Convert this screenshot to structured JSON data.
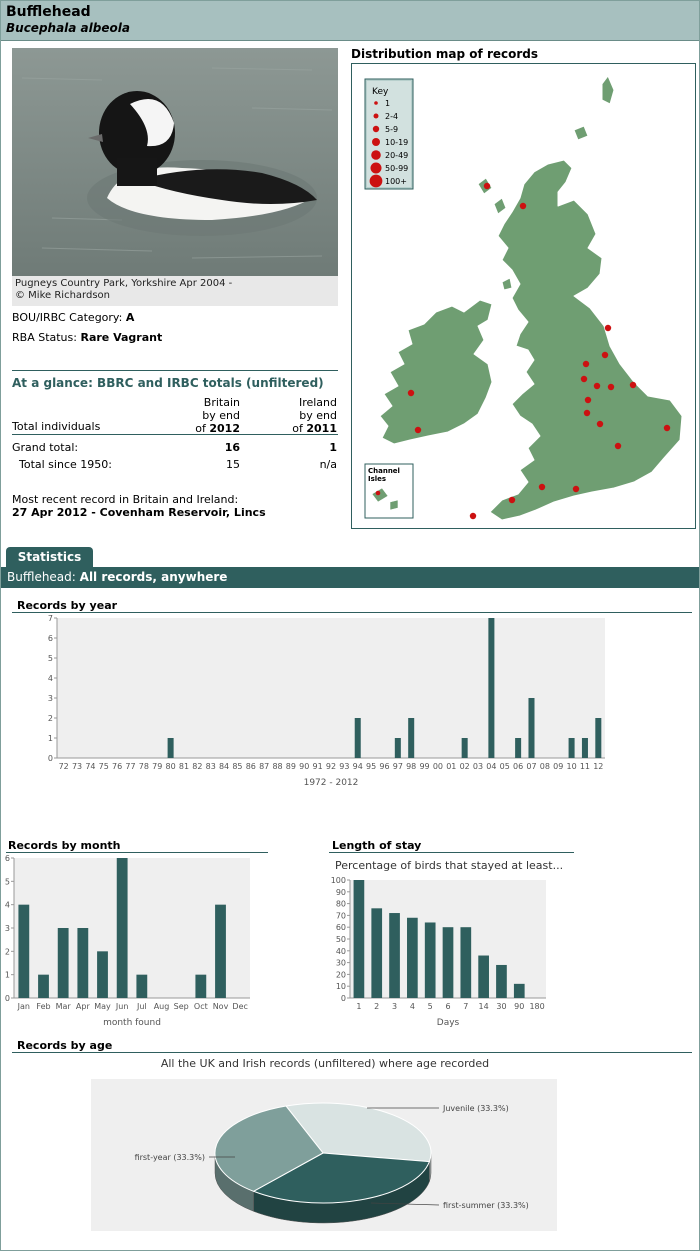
{
  "header": {
    "title": "Bufflehead",
    "subtitle": "Bucephala albeola"
  },
  "photo": {
    "caption_line1": "Pugneys Country Park, Yorkshire Apr 2004 -",
    "caption_line2": "© Mike Richardson"
  },
  "status": {
    "bou_label": "BOU/IRBC Category:",
    "bou_value": "A",
    "rba_label": "RBA Status:",
    "rba_value": "Rare Vagrant"
  },
  "glance": {
    "title": "At a glance: BBRC and IRBC totals (unfiltered)",
    "col1_l1": "Britain",
    "col1_l2": "by end",
    "col1_l3a": "of ",
    "col1_l3b": "2012",
    "col2_l1": "Ireland",
    "col2_l2": "by end",
    "col2_l3a": "of ",
    "col2_l3b": "2011",
    "row0_label": "Total individuals",
    "row1_label": "Grand total:",
    "row1_b": "16",
    "row1_i": "1",
    "row2_label": "Total since 1950:",
    "row2_b": "15",
    "row2_i": "n/a",
    "recent_label": "Most recent record in Britain and Ireland:",
    "recent_value": "27 Apr 2012  - Covenham Reservoir, Lincs"
  },
  "map": {
    "title": "Distribution map of records",
    "key_title": "Key",
    "key_items": [
      "1",
      "2-4",
      "5-9",
      "10-19",
      "20-49",
      "50-99",
      "100+"
    ],
    "inset_label_1": "Channel",
    "inset_label_2": "Isles",
    "land_color": "#6f9e72",
    "dot_color": "#cc1111"
  },
  "stats": {
    "tab": "Statistics",
    "bar_label": "Bufflehead:",
    "bar_value": "All records, anywhere"
  },
  "sections": {
    "by_year": "Records by year",
    "by_month": "Records by month",
    "stay": "Length of stay",
    "by_age": "Records by age"
  },
  "chart_data": [
    {
      "type": "bar",
      "title": "Records by year",
      "xlabel": "1972 - 2012",
      "ylim": [
        0,
        7
      ],
      "yticks": [
        "0",
        "1",
        "2",
        "3",
        "4",
        "5",
        "6",
        "7"
      ],
      "categories": [
        "72",
        "73",
        "74",
        "75",
        "76",
        "77",
        "78",
        "79",
        "80",
        "81",
        "82",
        "83",
        "84",
        "85",
        "86",
        "87",
        "88",
        "89",
        "90",
        "91",
        "92",
        "93",
        "94",
        "95",
        "96",
        "97",
        "98",
        "99",
        "00",
        "01",
        "02",
        "03",
        "04",
        "05",
        "06",
        "07",
        "08",
        "09",
        "10",
        "11",
        "12"
      ],
      "values": [
        0,
        0,
        0,
        0,
        0,
        0,
        0,
        0,
        1,
        0,
        0,
        0,
        0,
        0,
        0,
        0,
        0,
        0,
        0,
        0,
        0,
        0,
        2,
        0,
        0,
        1,
        2,
        0,
        0,
        0,
        1,
        0,
        7,
        0,
        1,
        3,
        0,
        0,
        1,
        1,
        2
      ]
    },
    {
      "type": "bar",
      "title": "Records by month",
      "xlabel": "month found",
      "ylim": [
        0,
        6
      ],
      "yticks": [
        "0",
        "1",
        "2",
        "3",
        "4",
        "5",
        "6"
      ],
      "categories": [
        "Jan",
        "Feb",
        "Mar",
        "Apr",
        "May",
        "Jun",
        "Jul",
        "Aug",
        "Sep",
        "Oct",
        "Nov",
        "Dec"
      ],
      "values": [
        4,
        1,
        3,
        3,
        2,
        6,
        1,
        0,
        0,
        1,
        4,
        0
      ]
    },
    {
      "type": "bar",
      "title": "Length of stay",
      "subtitle": "Percentage of birds that stayed at least...",
      "xlabel": "Days",
      "ylim": [
        0,
        100
      ],
      "yticks": [
        "0",
        "10",
        "20",
        "30",
        "40",
        "50",
        "60",
        "70",
        "80",
        "90",
        "100"
      ],
      "categories": [
        "1",
        "2",
        "3",
        "4",
        "5",
        "6",
        "7",
        "14",
        "30",
        "90",
        "180"
      ],
      "values": [
        100,
        76,
        72,
        68,
        64,
        60,
        60,
        36,
        28,
        12,
        0
      ]
    },
    {
      "type": "pie",
      "title": "Records by age",
      "subtitle": "All the UK and Irish records (unfiltered) where age recorded",
      "slices": [
        {
          "label": "Juvenile (33.3%)",
          "value": 33.3,
          "color": "#d9e3e2"
        },
        {
          "label": "first-summer (33.3%)",
          "value": 33.3,
          "color": "#2f5f5e"
        },
        {
          "label": "first-year (33.3%)",
          "value": 33.3,
          "color": "#7f9f9b"
        }
      ]
    }
  ]
}
